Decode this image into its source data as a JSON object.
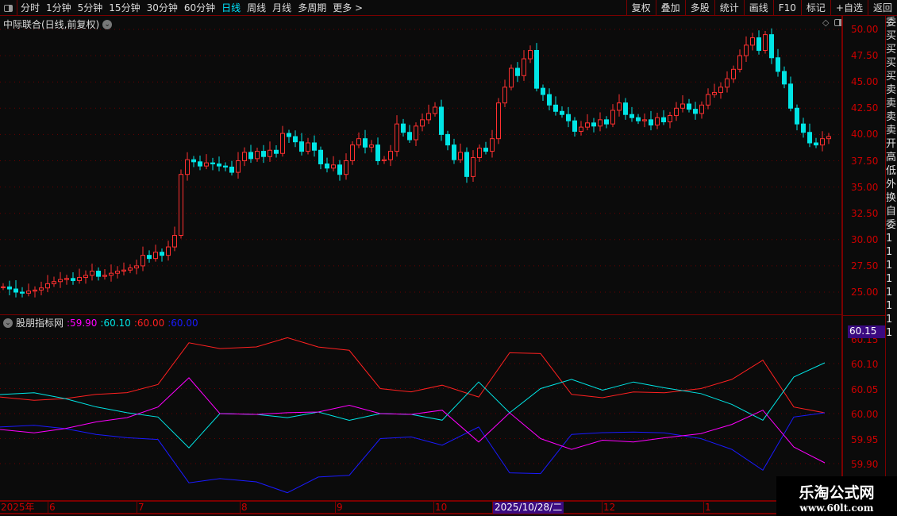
{
  "toolbar": {
    "periods": [
      "分时",
      "1分钟",
      "5分钟",
      "15分钟",
      "30分钟",
      "60分钟",
      "日线",
      "周线",
      "月线",
      "多周期",
      "更多 >"
    ],
    "active": "日线",
    "buttons": [
      "复权",
      "叠加",
      "多股",
      "统计",
      "画线",
      "F10",
      "标记",
      "+自选",
      "返回"
    ]
  },
  "main": {
    "title": "中际联合(日线,前复权)"
  },
  "indicator": {
    "name": "股朋指标网",
    "values": [
      {
        "text": ":59.90",
        "color": "#ff00ff"
      },
      {
        "text": ":60.10",
        "color": "#00e5e5"
      },
      {
        "text": ":60.00",
        "color": "#ff2020"
      },
      {
        "text": ":60.00",
        "color": "#1a1aff"
      }
    ],
    "cursor_value": "60.15"
  },
  "right_strip": [
    "委",
    "买",
    "买",
    "买",
    "买",
    "卖",
    "卖",
    "卖",
    "卖",
    "开",
    "高",
    "低",
    "外",
    "换",
    "自",
    "委",
    "1",
    "1",
    "1",
    "1",
    "1",
    "1",
    "1",
    "1"
  ],
  "watermark": {
    "name": "乐淘公式网",
    "url": "www.60lt.com"
  },
  "chart_data": [
    {
      "type": "candlestick",
      "ylim": [
        24,
        50.5
      ],
      "yticks": [
        "50.00",
        "47.50",
        "45.00",
        "42.50",
        "40.00",
        "37.50",
        "35.00",
        "32.50",
        "30.00",
        "27.50",
        "25.00"
      ],
      "up_color": "#ff3030",
      "down_color": "#00e5e5",
      "closes": [
        25.5,
        25.3,
        25.0,
        24.9,
        25.1,
        25.2,
        25.4,
        25.8,
        26.0,
        26.2,
        26.3,
        26.1,
        26.4,
        26.6,
        27.0,
        26.5,
        26.6,
        26.8,
        27.0,
        27.1,
        27.3,
        27.5,
        28.5,
        28.2,
        28.8,
        28.5,
        29.3,
        30.4,
        36.2,
        37.6,
        37.4,
        37.0,
        37.3,
        37.2,
        37.0,
        36.9,
        36.4,
        37.5,
        38.3,
        37.7,
        38.4,
        37.9,
        38.5,
        38.2,
        40.1,
        39.8,
        39.3,
        38.4,
        39.2,
        38.5,
        37.2,
        36.8,
        37.1,
        36.2,
        37.5,
        39.0,
        39.6,
        38.8,
        39.0,
        37.5,
        37.6,
        38.4,
        41.0,
        40.2,
        39.5,
        40.8,
        41.4,
        42.0,
        42.6,
        40.0,
        39.0,
        37.6,
        38.3,
        36.0,
        37.8,
        38.7,
        38.4,
        39.6,
        43.0,
        44.5,
        46.3,
        45.6,
        47.2,
        48.0,
        44.4,
        43.8,
        42.8,
        42.2,
        41.9,
        41.3,
        40.3,
        40.7,
        41.1,
        40.8,
        41.4,
        41.0,
        42.3,
        43.0,
        41.9,
        41.6,
        41.3,
        41.4,
        40.9,
        41.6,
        41.2,
        41.8,
        42.5,
        42.9,
        42.4,
        42.0,
        42.8,
        43.8,
        44.0,
        44.5,
        45.3,
        46.2,
        47.5,
        48.5,
        49.2,
        48.0,
        49.5,
        47.3,
        46.0,
        44.8,
        42.5,
        41.0,
        40.2,
        39.2,
        39.0,
        39.6,
        39.8
      ]
    },
    {
      "type": "line",
      "ylim": [
        59.87,
        60.18
      ],
      "yticks": [
        "60.15",
        "60.10",
        "60.05",
        "60.00",
        "59.95",
        "59.90"
      ],
      "series": [
        {
          "color": "#ff2020",
          "values": [
            60.03,
            60.025,
            60.03,
            60.04,
            60.045,
            60.055,
            60.14,
            60.13,
            60.135,
            60.155,
            60.13,
            60.125,
            60.05,
            60.045,
            60.06,
            60.03,
            60.12,
            60.12,
            60.04,
            60.035,
            60.04,
            60.04,
            60.05,
            60.07,
            60.11,
            60.01,
            60.0
          ]
        },
        {
          "color": "#1a1aff",
          "values": [
            59.97,
            59.975,
            59.97,
            59.96,
            59.955,
            59.945,
            59.86,
            59.87,
            59.865,
            59.845,
            59.87,
            59.875,
            59.95,
            59.955,
            59.94,
            59.97,
            59.88,
            59.88,
            59.96,
            59.965,
            59.96,
            59.96,
            59.95,
            59.93,
            59.89,
            59.99,
            60.0
          ]
        },
        {
          "color": "#00e5e5",
          "values": [
            60.035,
            60.04,
            60.03,
            60.015,
            60.005,
            59.99,
            59.93,
            60.0,
            60.0,
            59.995,
            60.0,
            59.985,
            60.0,
            60.0,
            59.99,
            60.06,
            60.0,
            60.05,
            60.07,
            60.05,
            60.06,
            60.05,
            60.04,
            60.02,
            59.99,
            60.07,
            60.1
          ]
        },
        {
          "color": "#ff00ff",
          "values": [
            59.965,
            59.96,
            59.97,
            59.985,
            59.995,
            60.01,
            60.07,
            60.0,
            60.0,
            60.005,
            60.0,
            60.015,
            60.0,
            60.0,
            60.01,
            59.94,
            60.0,
            59.95,
            59.93,
            59.95,
            59.94,
            59.95,
            59.96,
            59.98,
            60.01,
            59.93,
            59.9
          ]
        }
      ]
    },
    {
      "type": "axis",
      "xticks": [
        "2025年",
        "6",
        "7",
        "8",
        "9",
        "10",
        "2025/10/28/二",
        "12",
        "1"
      ]
    }
  ]
}
